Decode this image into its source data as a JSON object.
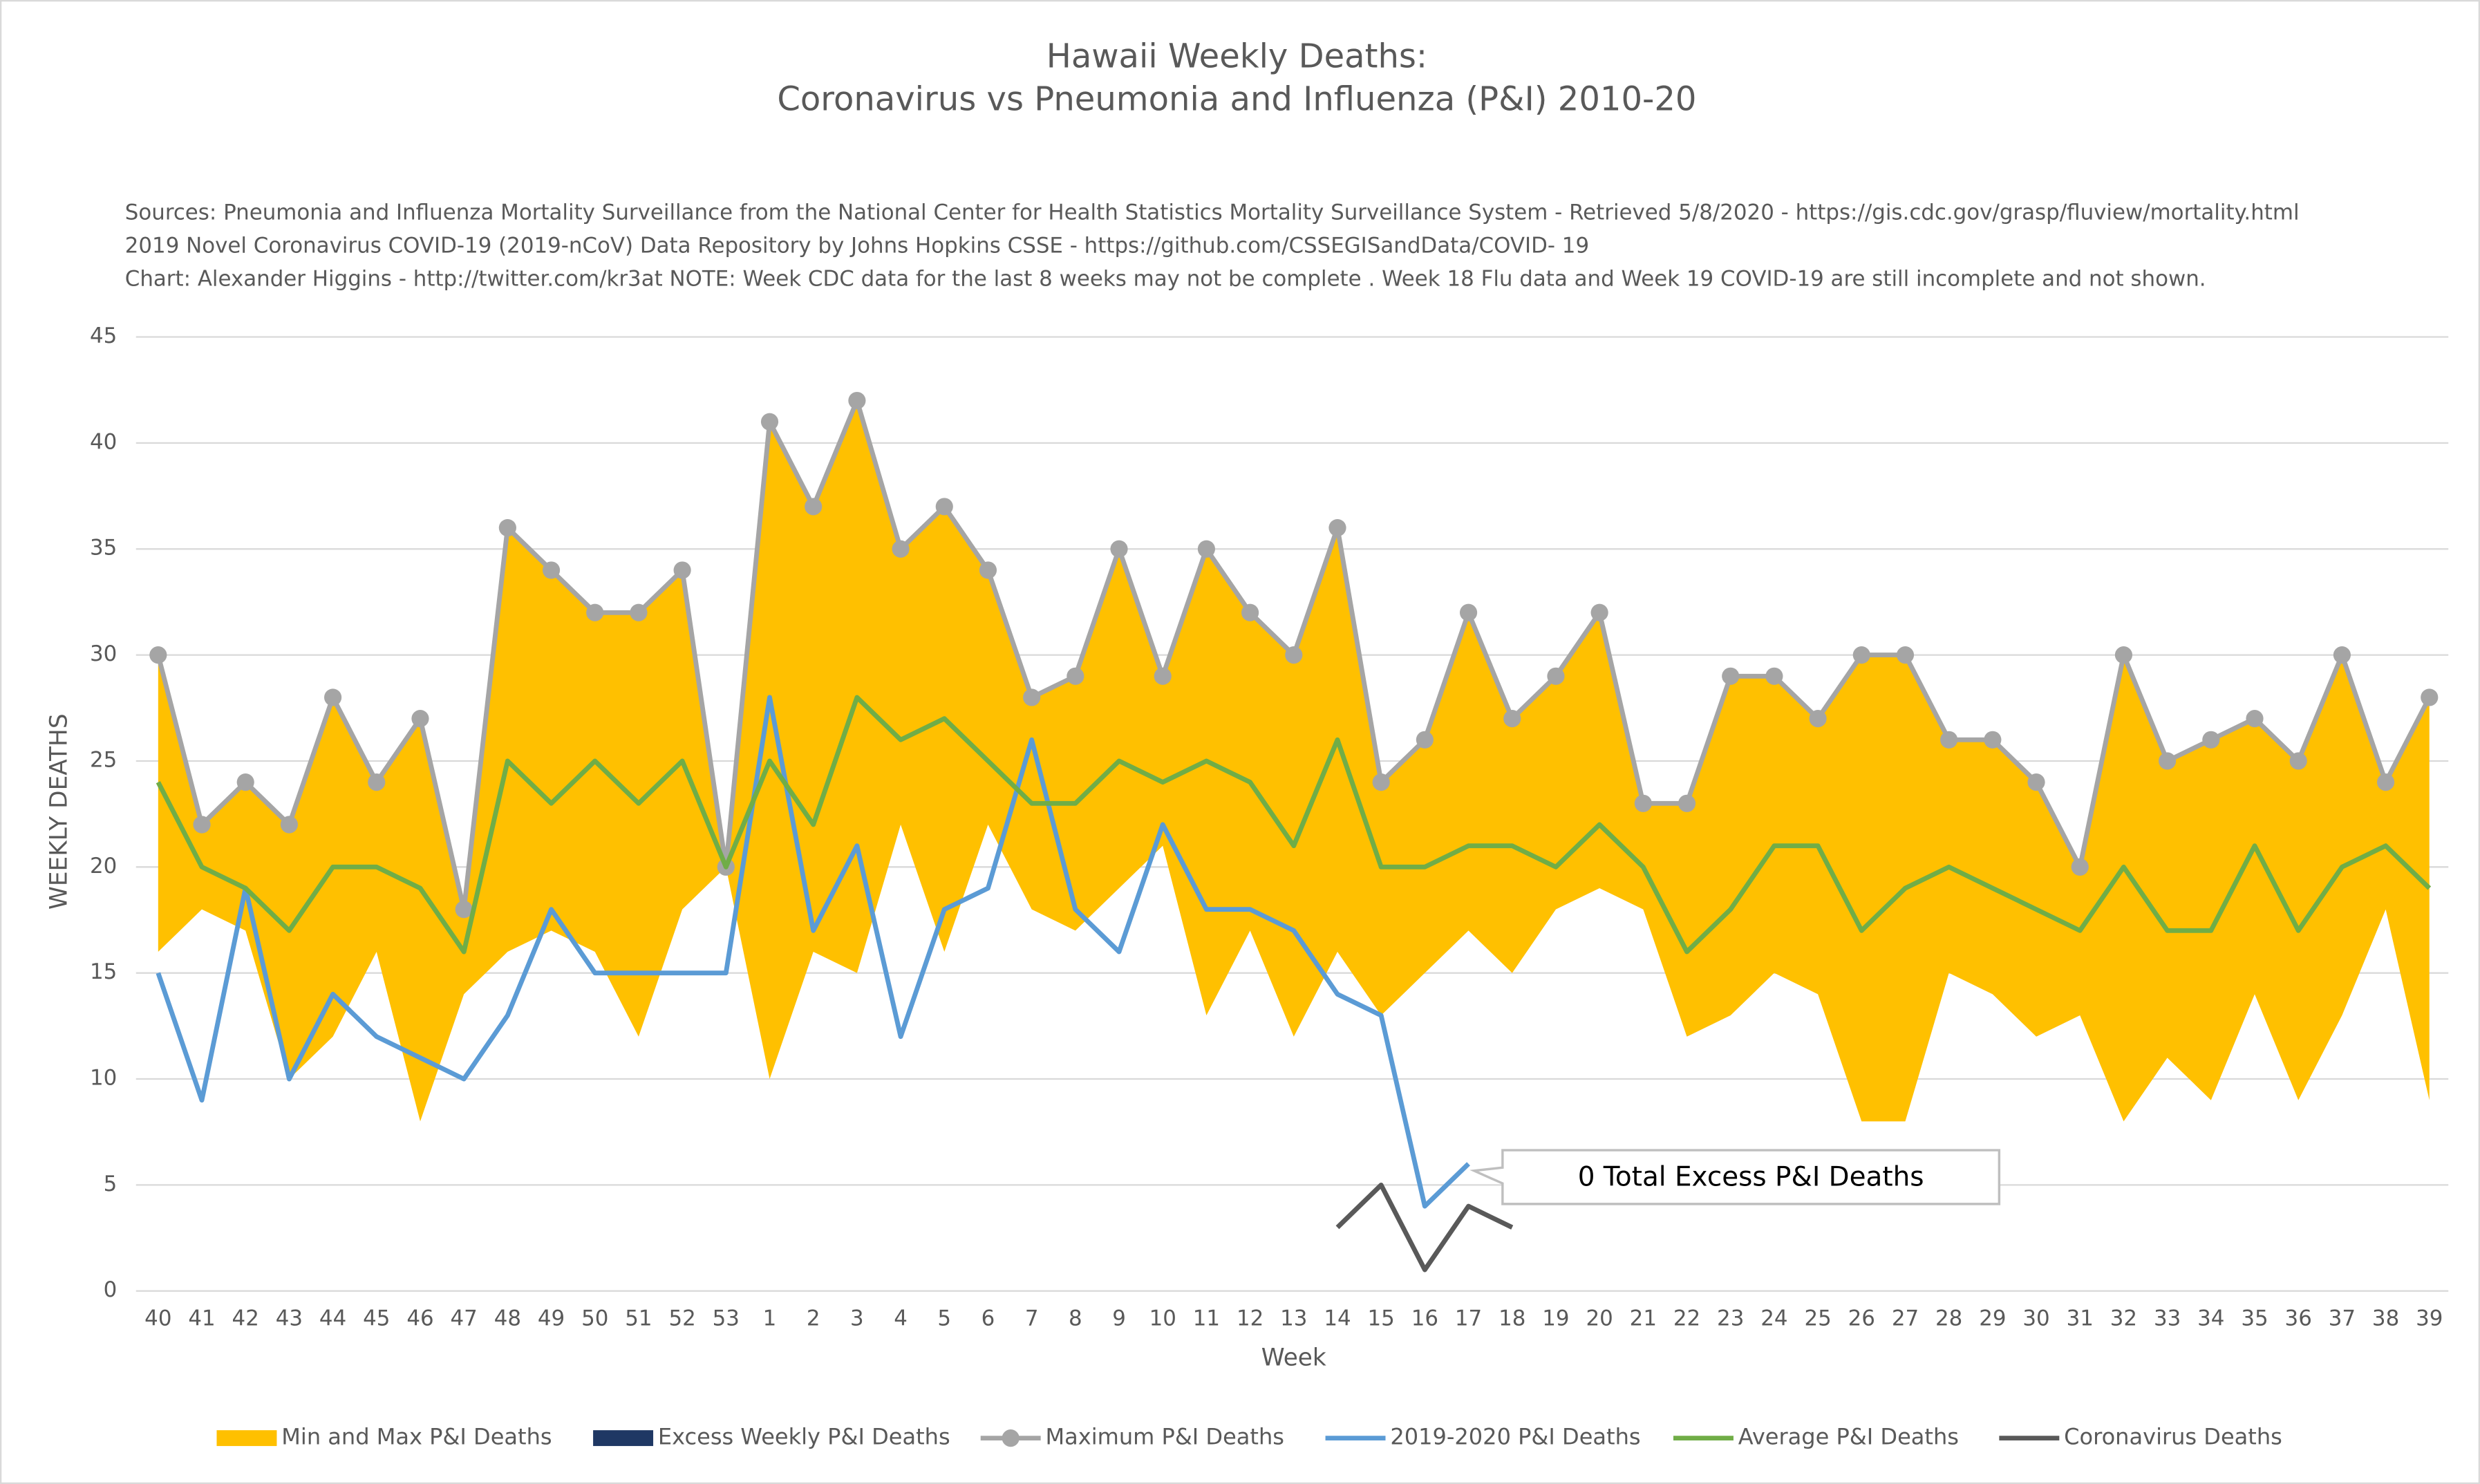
{
  "chart_data": {
    "type": "line",
    "title": [
      "Hawaii Weekly Deaths:",
      "Coronavirus vs Pneumonia and Influenza (P&I) 2010-20"
    ],
    "subtitle": [
      "Sources: Pneumonia and Influenza Mortality Surveillance from the National Center for Health Statistics Mortality Surveillance System - Retrieved 5/8/2020 - https://gis.cdc.gov/grasp/fluview/mortality.html",
      "2019 Novel Coronavirus COVID-19 (2019-nCoV) Data Repository by Johns Hopkins CSSE - https://github.com/CSSEGISandData/COVID- 19",
      "Chart: Alexander Higgins - http://twitter.com/kr3at   NOTE: Week CDC data for the last 8 weeks may not be complete . Week 18 Flu data and Week 19 COVID-19 are still incomplete and not shown."
    ],
    "x_label": "Week",
    "y_label": "WEEKLY DEATHS",
    "annotation": "0 Total Excess P&I Deaths",
    "categories": [
      "40",
      "41",
      "42",
      "43",
      "44",
      "45",
      "46",
      "47",
      "48",
      "49",
      "50",
      "51",
      "52",
      "53",
      "1",
      "2",
      "3",
      "4",
      "5",
      "6",
      "7",
      "8",
      "9",
      "10",
      "11",
      "12",
      "13",
      "14",
      "15",
      "16",
      "17",
      "18",
      "19",
      "20",
      "21",
      "22",
      "23",
      "24",
      "25",
      "26",
      "27",
      "28",
      "29",
      "30",
      "31",
      "32",
      "33",
      "34",
      "35",
      "36",
      "37",
      "38",
      "39"
    ],
    "ylim": [
      0,
      45
    ],
    "yticks": [
      0,
      5,
      10,
      15,
      20,
      25,
      30,
      35,
      40,
      45
    ],
    "grid": true,
    "legend": "bottom",
    "series": [
      {
        "name": "Min and Max P&I Deaths",
        "kind": "band",
        "color": "#ffc000",
        "values": [
          16,
          18,
          17,
          10,
          12,
          16,
          8,
          14,
          16,
          17,
          16,
          12,
          18,
          20,
          10,
          16,
          15,
          22,
          16,
          22,
          18,
          17,
          19,
          21,
          13,
          17,
          12,
          16,
          13,
          15,
          17,
          15,
          18,
          19,
          18,
          12,
          13,
          15,
          14,
          8,
          8,
          15,
          14,
          12,
          13,
          8,
          11,
          9,
          14,
          9,
          13,
          18,
          9
        ]
      },
      {
        "name": "Excess Weekly P&I Deaths",
        "kind": "bar",
        "color": "#1f3864",
        "values": [
          null,
          null,
          null,
          null,
          null,
          null,
          null,
          null,
          null,
          null,
          null,
          null,
          null,
          null,
          null,
          null,
          null,
          null,
          null,
          null,
          null,
          null,
          null,
          null,
          null,
          null,
          null,
          null,
          null,
          null,
          null,
          null,
          null,
          null,
          null,
          null,
          null,
          null,
          null,
          null,
          null,
          null,
          null,
          null,
          null,
          null,
          null,
          null,
          null,
          null,
          null,
          null,
          null
        ]
      },
      {
        "name": "Maximum P&I Deaths",
        "kind": "line",
        "markers": true,
        "color": "#a5a5a5",
        "values": [
          30,
          22,
          24,
          22,
          28,
          24,
          27,
          18,
          36,
          34,
          32,
          32,
          34,
          20,
          41,
          37,
          42,
          35,
          37,
          34,
          28,
          29,
          35,
          29,
          35,
          32,
          30,
          36,
          24,
          26,
          32,
          27,
          29,
          32,
          23,
          23,
          29,
          29,
          27,
          30,
          30,
          26,
          26,
          24,
          20,
          30,
          25,
          26,
          27,
          25,
          30,
          24,
          28
        ]
      },
      {
        "name": "2019-2020 P&I Deaths",
        "kind": "line",
        "color": "#5b9bd5",
        "values": [
          15,
          9,
          19,
          10,
          14,
          12,
          11,
          10,
          13,
          18,
          15,
          15,
          15,
          15,
          28,
          17,
          21,
          12,
          18,
          19,
          26,
          18,
          16,
          22,
          18,
          18,
          17,
          14,
          13,
          4,
          6,
          null,
          null,
          null,
          null,
          null,
          null,
          null,
          null,
          null,
          null,
          null,
          null,
          null,
          null,
          null,
          null,
          null,
          null,
          null,
          null,
          null,
          null
        ]
      },
      {
        "name": "Average P&I Deaths",
        "kind": "line",
        "color": "#70ad47",
        "values": [
          24,
          20,
          19,
          17,
          20,
          20,
          19,
          16,
          25,
          23,
          25,
          23,
          25,
          20,
          25,
          22,
          28,
          26,
          27,
          25,
          23,
          23,
          25,
          24,
          25,
          24,
          21,
          26,
          20,
          20,
          21,
          21,
          20,
          22,
          20,
          16,
          18,
          21,
          21,
          17,
          19,
          20,
          19,
          18,
          17,
          20,
          17,
          17,
          21,
          17,
          20,
          21,
          19
        ]
      },
      {
        "name": "Coronavirus Deaths",
        "kind": "line",
        "color": "#595959",
        "values": [
          null,
          null,
          null,
          null,
          null,
          null,
          null,
          null,
          null,
          null,
          null,
          null,
          null,
          null,
          null,
          null,
          null,
          null,
          null,
          null,
          null,
          null,
          null,
          null,
          null,
          null,
          null,
          3,
          5,
          1,
          4,
          3,
          null,
          null,
          null,
          null,
          null,
          null,
          null,
          null,
          null,
          null,
          null,
          null,
          null,
          null,
          null,
          null,
          null,
          null,
          null,
          null,
          null
        ]
      }
    ]
  }
}
